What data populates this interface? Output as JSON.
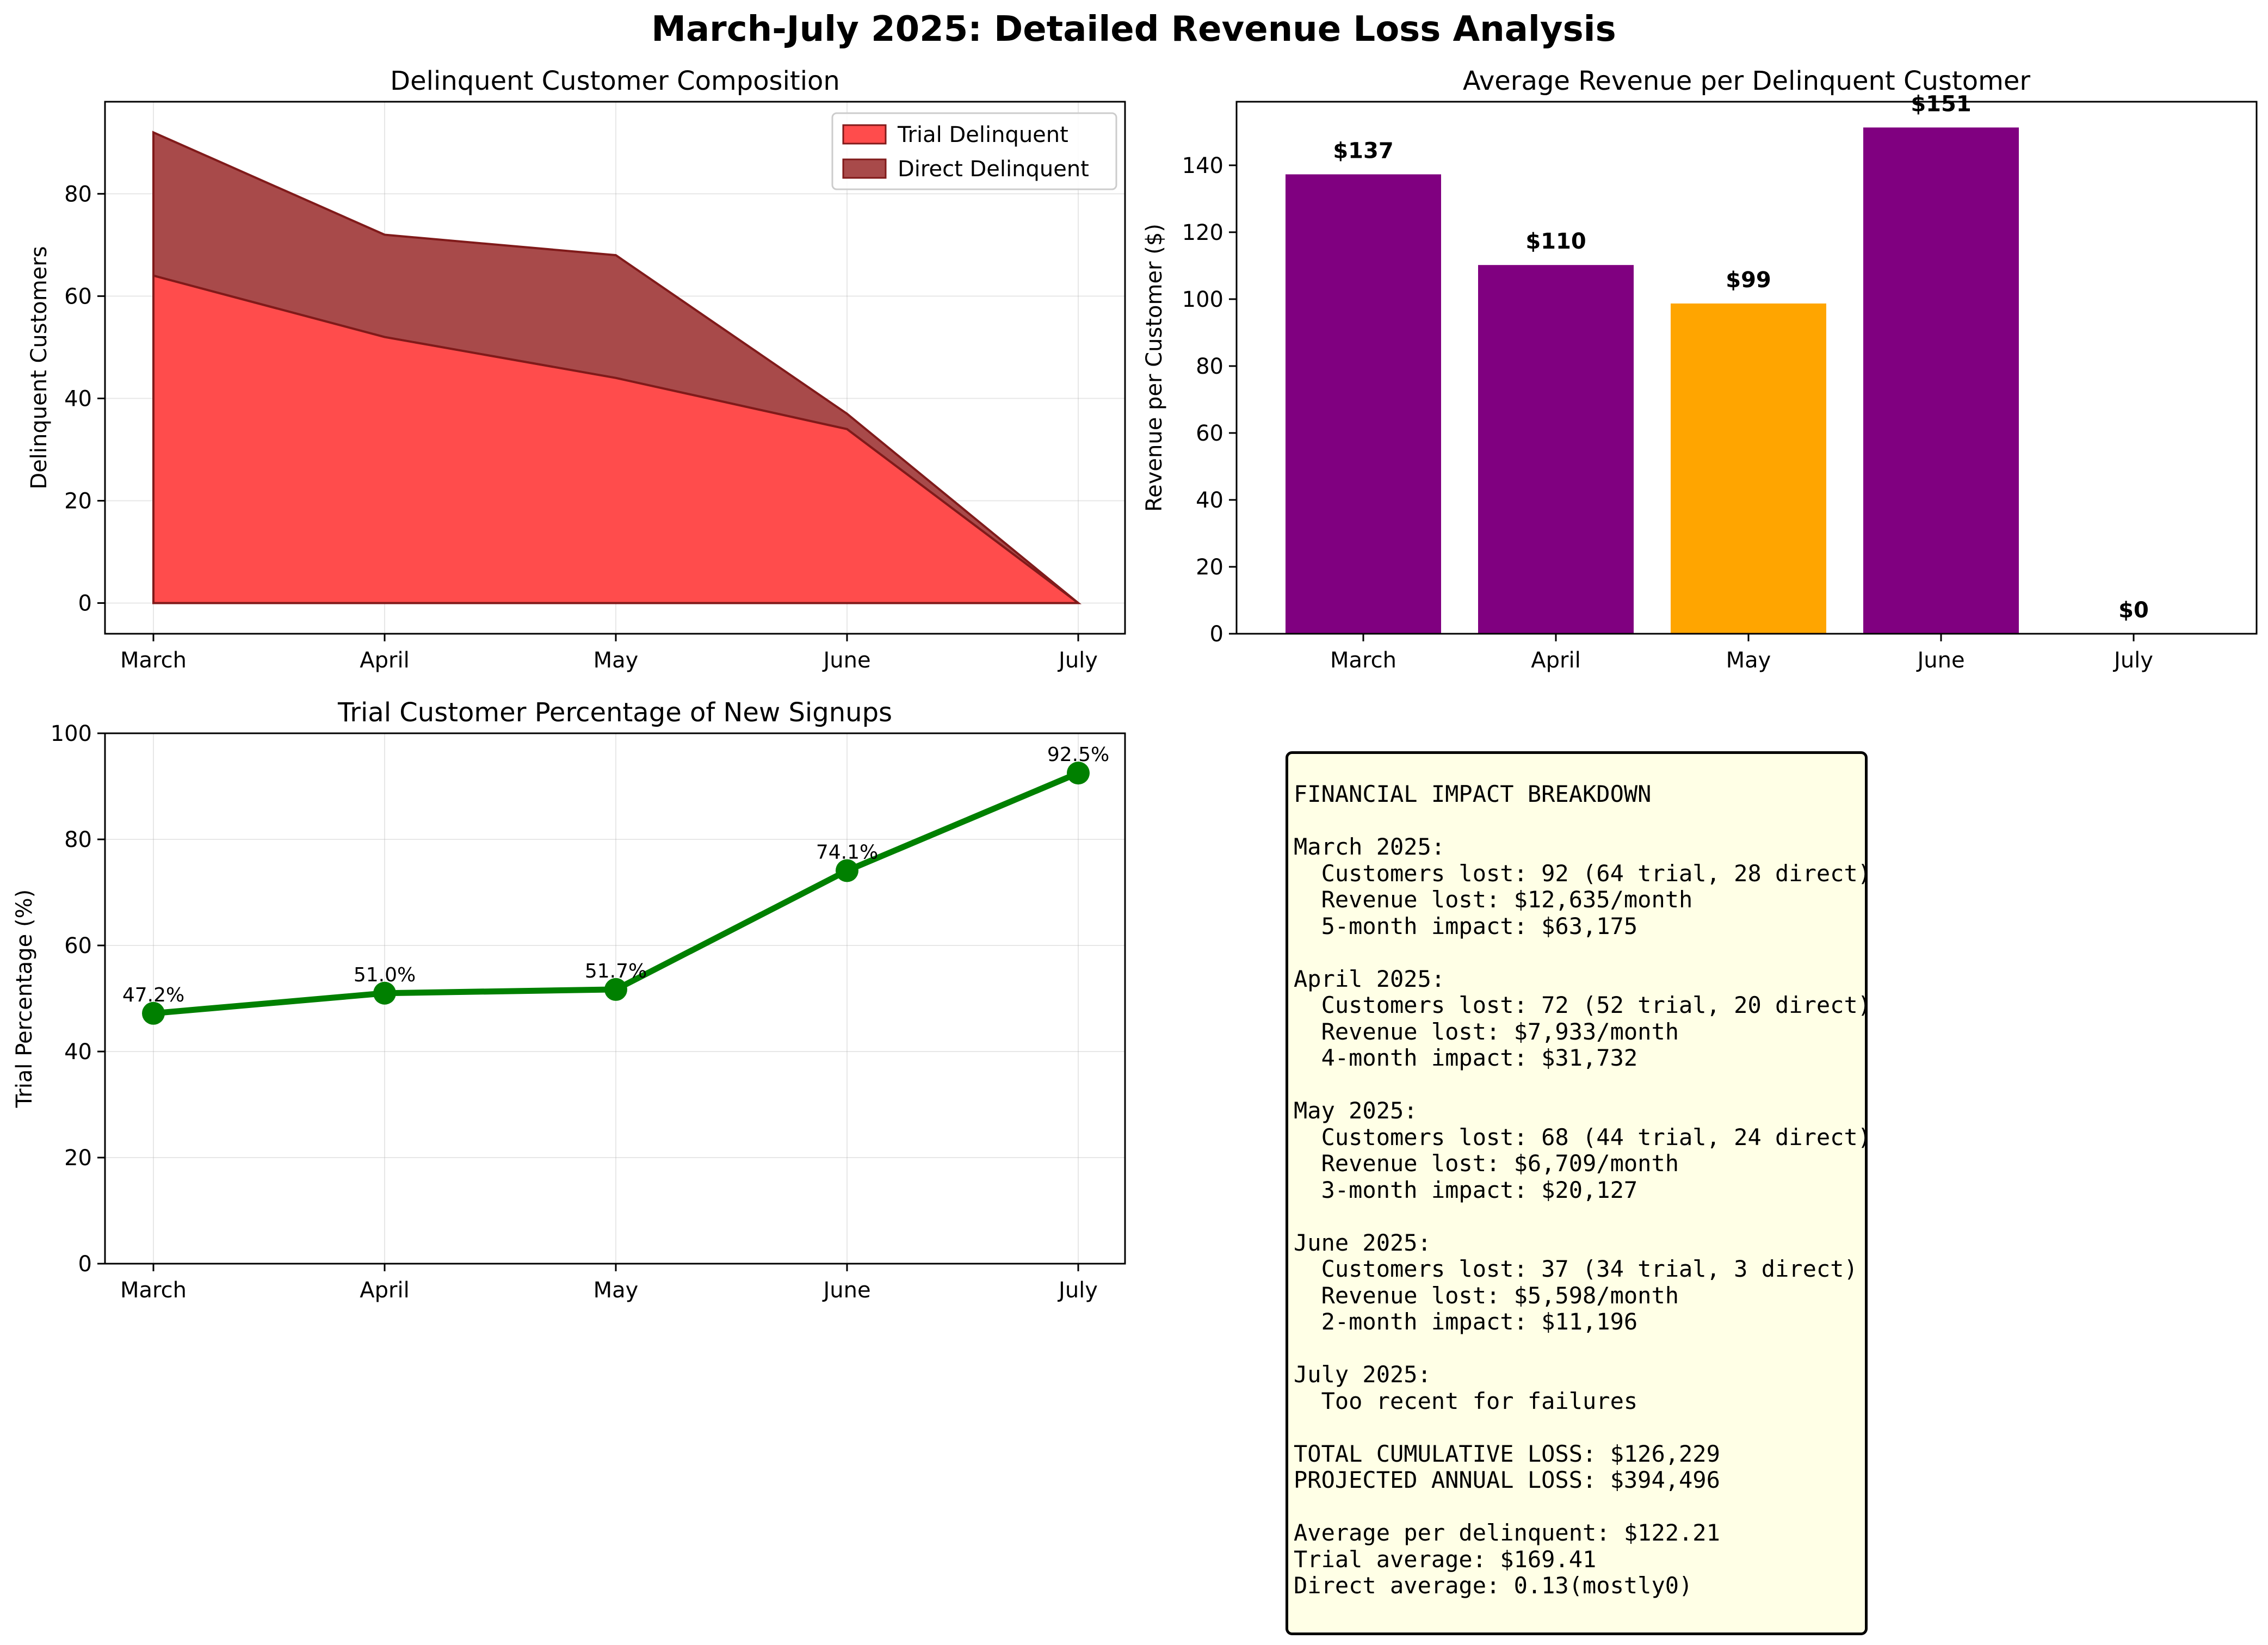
{
  "suptitle": "March-July 2025: Detailed Revenue Loss Analysis",
  "colors": {
    "trial_area": "#ff4c4c",
    "direct_area": "#a84a4a",
    "area_edge": "#801a1a",
    "bar_purple": "#800080",
    "bar_orange": "#ffa500",
    "line_green": "#008000",
    "box_bg": "#ffffe6"
  },
  "chart_data": [
    {
      "type": "area",
      "stacked": true,
      "title": "Delinquent Customer Composition",
      "xlabel": "",
      "ylabel": "Delinquent Customers",
      "categories": [
        "March",
        "April",
        "May",
        "June",
        "July"
      ],
      "series": [
        {
          "name": "Trial Delinquent",
          "values": [
            64,
            52,
            44,
            34,
            0
          ]
        },
        {
          "name": "Direct Delinquent",
          "values": [
            28,
            20,
            24,
            3,
            0
          ]
        }
      ],
      "ylim": [
        -6,
        98
      ],
      "yticks": [
        0,
        20,
        40,
        60,
        80
      ],
      "grid": true,
      "legend": "top-right"
    },
    {
      "type": "bar",
      "title": "Average Revenue per Delinquent Customer",
      "xlabel": "",
      "ylabel": "Revenue per Customer ($)",
      "categories": [
        "March",
        "April",
        "May",
        "June",
        "July"
      ],
      "values": [
        137.3,
        110.2,
        98.7,
        151.3,
        0
      ],
      "labels": [
        "$137",
        "$110",
        "$99",
        "$151",
        "$0"
      ],
      "bar_colors": [
        "#800080",
        "#800080",
        "#ffa500",
        "#800080",
        "#800080"
      ],
      "ylim": [
        0,
        159
      ],
      "yticks": [
        0,
        20,
        40,
        60,
        80,
        100,
        120,
        140
      ],
      "grid": false
    },
    {
      "type": "line",
      "title": "Trial Customer Percentage of New Signups",
      "xlabel": "",
      "ylabel": "Trial Percentage (%)",
      "categories": [
        "March",
        "April",
        "May",
        "June",
        "July"
      ],
      "values": [
        47.2,
        51.0,
        51.7,
        74.1,
        92.5
      ],
      "labels": [
        "47.2%",
        "51.0%",
        "51.7%",
        "74.1%",
        "92.5%"
      ],
      "ylim": [
        0,
        100
      ],
      "yticks": [
        0,
        20,
        40,
        60,
        80,
        100
      ],
      "grid": true
    }
  ],
  "financial_text": "FINANCIAL IMPACT BREAKDOWN\n\nMarch 2025:\n  Customers lost: 92 (64 trial, 28 direct)\n  Revenue lost: $12,635/month\n  5-month impact: $63,175\n\nApril 2025:\n  Customers lost: 72 (52 trial, 20 direct)\n  Revenue lost: $7,933/month\n  4-month impact: $31,732\n\nMay 2025:\n  Customers lost: 68 (44 trial, 24 direct)\n  Revenue lost: $6,709/month\n  3-month impact: $20,127\n\nJune 2025:\n  Customers lost: 37 (34 trial, 3 direct)\n  Revenue lost: $5,598/month\n  2-month impact: $11,196\n\nJuly 2025:\n  Too recent for failures\n\nTOTAL CUMULATIVE LOSS: $126,229\nPROJECTED ANNUAL LOSS: $394,496\n\nAverage per delinquent: $122.21\nTrial average: $169.41\nDirect average: 0.13(mostly0)"
}
